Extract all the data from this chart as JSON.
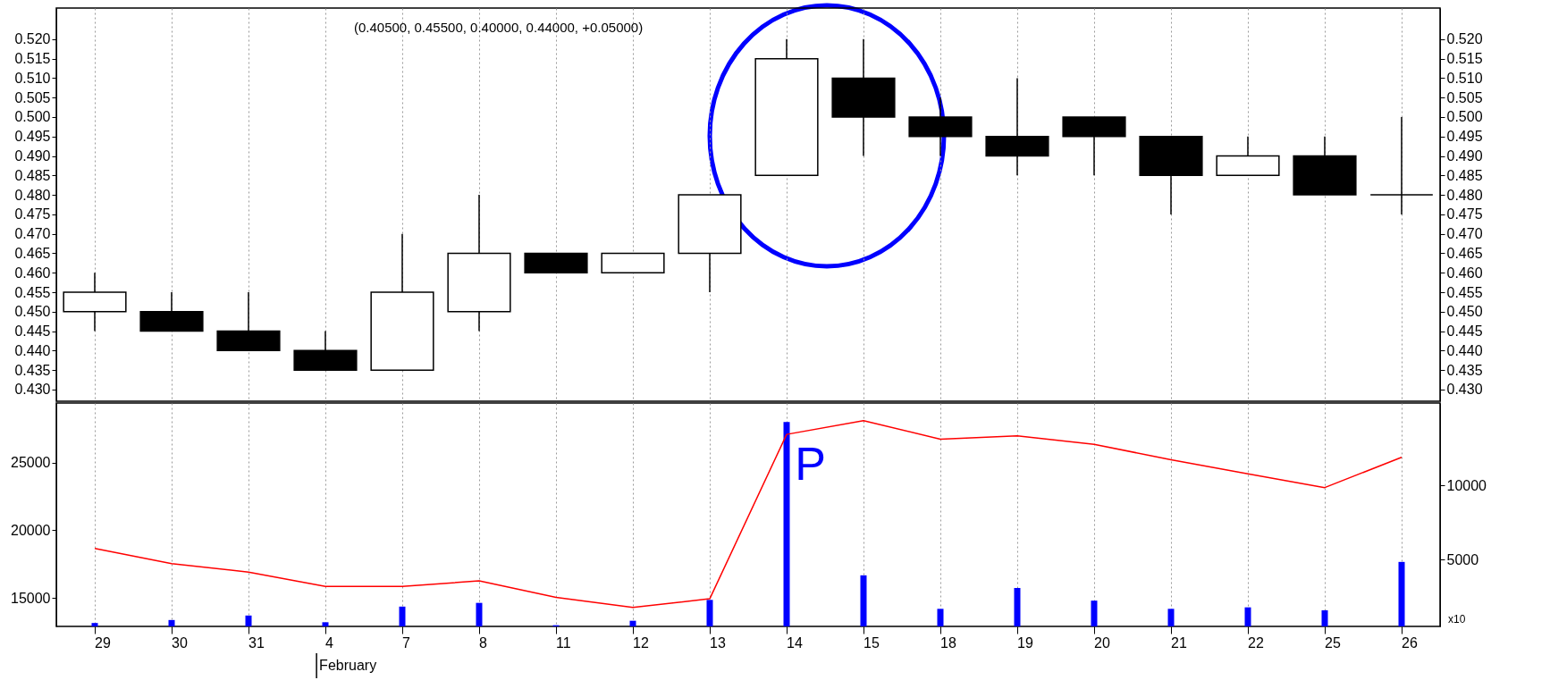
{
  "chart_data": [
    {
      "type": "candlestick",
      "title": "(0.40500, 0.45500, 0.40000, 0.44000, +0.05000)",
      "categories": [
        "29",
        "30",
        "31",
        "4",
        "7",
        "8",
        "11",
        "12",
        "13",
        "14",
        "15",
        "18",
        "19",
        "20",
        "21",
        "22",
        "25",
        "26"
      ],
      "ohlc": [
        [
          0.45,
          0.46,
          0.445,
          0.455
        ],
        [
          0.45,
          0.455,
          0.445,
          0.445
        ],
        [
          0.445,
          0.455,
          0.44,
          0.44
        ],
        [
          0.44,
          0.445,
          0.435,
          0.435
        ],
        [
          0.435,
          0.47,
          0.435,
          0.455
        ],
        [
          0.45,
          0.48,
          0.445,
          0.465
        ],
        [
          0.465,
          0.465,
          0.46,
          0.46
        ],
        [
          0.46,
          0.465,
          0.46,
          0.465
        ],
        [
          0.465,
          0.48,
          0.455,
          0.48
        ],
        [
          0.485,
          0.52,
          0.485,
          0.515
        ],
        [
          0.51,
          0.52,
          0.49,
          0.5
        ],
        [
          0.5,
          0.505,
          0.49,
          0.495
        ],
        [
          0.495,
          0.51,
          0.485,
          0.49
        ],
        [
          0.5,
          0.5,
          0.485,
          0.495
        ],
        [
          0.495,
          0.495,
          0.475,
          0.485
        ],
        [
          0.485,
          0.495,
          0.485,
          0.49
        ],
        [
          0.49,
          0.495,
          0.48,
          0.48
        ],
        [
          0.48,
          0.5,
          0.475,
          0.48
        ]
      ],
      "ylim": [
        0.427,
        0.528
      ],
      "yticks": [
        {
          "value": 0.43,
          "label": "0.430"
        },
        {
          "value": 0.435,
          "label": "0.435"
        },
        {
          "value": 0.44,
          "label": "0.440"
        },
        {
          "value": 0.445,
          "label": "0.445"
        },
        {
          "value": 0.45,
          "label": "0.450"
        },
        {
          "value": 0.455,
          "label": "0.455"
        },
        {
          "value": 0.46,
          "label": "0.460"
        },
        {
          "value": 0.465,
          "label": "0.465"
        },
        {
          "value": 0.47,
          "label": "0.470"
        },
        {
          "value": 0.475,
          "label": "0.475"
        },
        {
          "value": 0.48,
          "label": "0.480"
        },
        {
          "value": 0.485,
          "label": "0.485"
        },
        {
          "value": 0.49,
          "label": "0.490"
        },
        {
          "value": 0.495,
          "label": "0.495"
        },
        {
          "value": 0.5,
          "label": "0.500"
        },
        {
          "value": 0.505,
          "label": "0.505"
        },
        {
          "value": 0.51,
          "label": "0.510"
        },
        {
          "value": 0.515,
          "label": "0.515"
        },
        {
          "value": 0.52,
          "label": "0.520"
        }
      ],
      "y2lim": [
        0.427,
        0.528
      ],
      "y2ticks": [
        {
          "value": 0.43,
          "label": "0.430"
        },
        {
          "value": 0.435,
          "label": "0.435"
        },
        {
          "value": 0.44,
          "label": "0.440"
        },
        {
          "value": 0.445,
          "label": "0.445"
        },
        {
          "value": 0.45,
          "label": "0.450"
        },
        {
          "value": 0.455,
          "label": "0.455"
        },
        {
          "value": 0.46,
          "label": "0.460"
        },
        {
          "value": 0.465,
          "label": "0.465"
        },
        {
          "value": 0.47,
          "label": "0.470"
        },
        {
          "value": 0.475,
          "label": "0.475"
        },
        {
          "value": 0.48,
          "label": "0.480"
        },
        {
          "value": 0.485,
          "label": "0.485"
        },
        {
          "value": 0.49,
          "label": "0.490"
        },
        {
          "value": 0.495,
          "label": "0.495"
        },
        {
          "value": 0.5,
          "label": "0.500"
        },
        {
          "value": 0.505,
          "label": "0.505"
        },
        {
          "value": 0.51,
          "label": "0.510"
        },
        {
          "value": 0.515,
          "label": "0.515"
        },
        {
          "value": 0.52,
          "label": "0.520"
        }
      ],
      "grid": "x",
      "tick_labels": "y"
    },
    {
      "type": "bar",
      "categories": [
        "29",
        "30",
        "31",
        "4",
        "7",
        "8",
        "11",
        "12",
        "13",
        "14",
        "15",
        "18",
        "19",
        "20",
        "21",
        "22",
        "25",
        "26"
      ],
      "series": [
        {
          "type": "bar",
          "axis": "y2",
          "color": "#0000ff",
          "values": [
            750,
            950,
            1250,
            800,
            1850,
            2100,
            600,
            900,
            2300,
            14250,
            3950,
            1700,
            3100,
            2250,
            1700,
            1800,
            1600,
            4850
          ]
        },
        {
          "type": "line",
          "color": "#ff0000",
          "values": [
            18650,
            17530,
            16900,
            15840,
            15840,
            16260,
            15030,
            14300,
            14930,
            27080,
            28100,
            26730,
            26970,
            26340,
            25210,
            24170,
            23150,
            25390
          ]
        }
      ],
      "ylim": [
        12890,
        29400
      ],
      "yticks": [
        15000,
        20000,
        25000
      ],
      "y2lim": [
        520,
        15520
      ],
      "y2ticks": [
        5000,
        10000
      ],
      "grid": "x",
      "annotations": [
        "P",
        "February",
        "x10"
      ]
    }
  ]
}
